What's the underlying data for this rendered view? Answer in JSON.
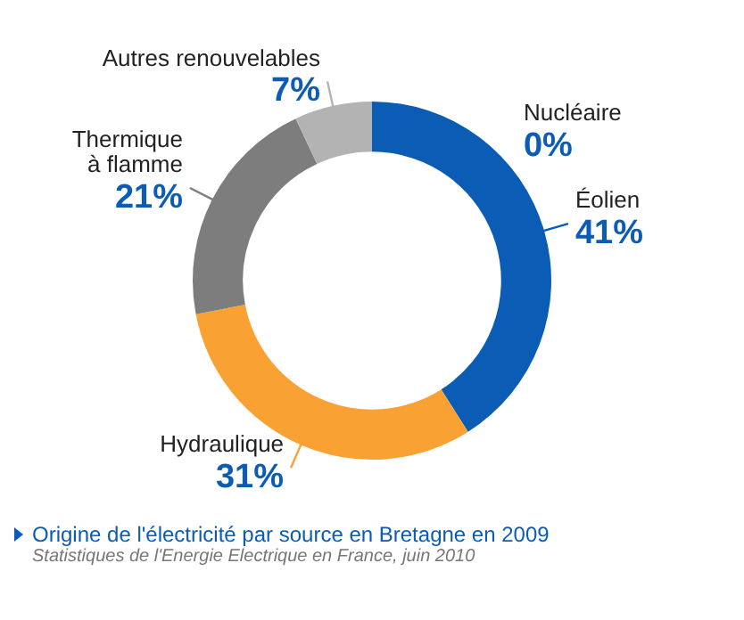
{
  "chart_data": {
    "type": "donut",
    "title": "Origine de l'électricité par source en Bretagne en 2009",
    "annotations": [
      "Statistiques de l'Energie Electrique en France, juin 2010"
    ],
    "categories": [
      "Nucléaire",
      "Éolien",
      "Hydraulique",
      "Thermique à flamme",
      "Autres renouvelables"
    ],
    "values": [
      0,
      41,
      31,
      21,
      7
    ],
    "value_labels": [
      "0%",
      "41%",
      "31%",
      "21%",
      "7%"
    ],
    "colors": [
      "#e0e0e0",
      "#0b5cb5",
      "#f9a132",
      "#7d7d7d",
      "#b3b3b3"
    ],
    "legend": false
  }
}
